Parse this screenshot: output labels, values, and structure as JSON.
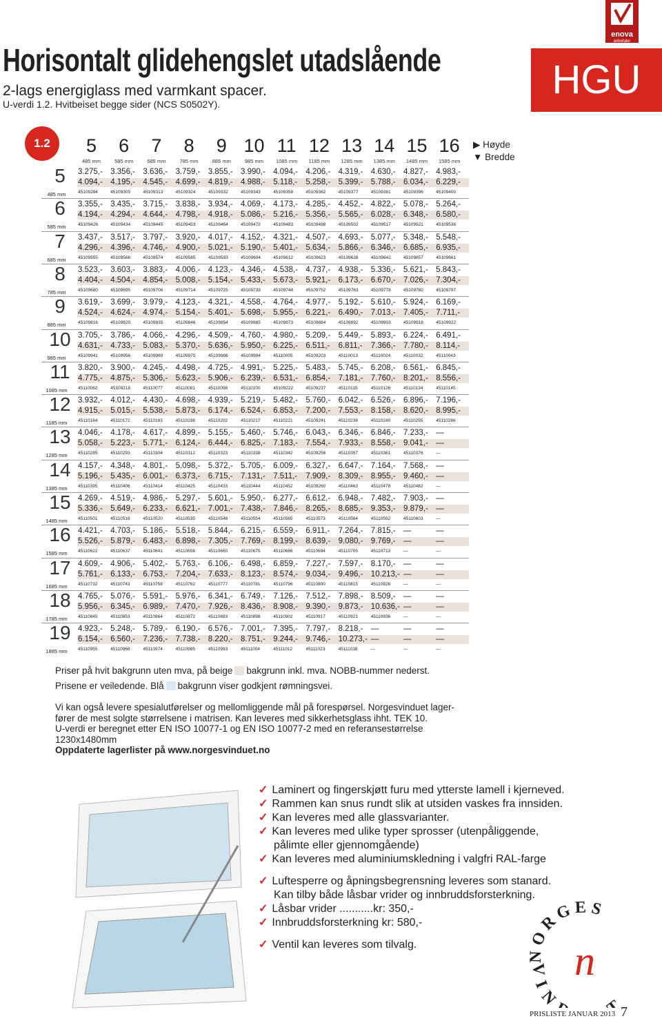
{
  "header": {
    "title": "Horisontalt glidehengslet utadslående",
    "subtitle": "2-lags energiglass med varmkant spacer.",
    "uvalue": "U-verdi 1.2. Hvitbeiset begge sider (NCS S0502Y).",
    "code": "HGU",
    "enova": "enova",
    "enova_sub": "anbefaler",
    "badge": "1.2"
  },
  "legend": {
    "height": "Høyde",
    "width": "Bredde"
  },
  "table": {
    "columns": [
      {
        "num": "5",
        "mm": "485 mm"
      },
      {
        "num": "6",
        "mm": "585 mm"
      },
      {
        "num": "7",
        "mm": "685 mm"
      },
      {
        "num": "8",
        "mm": "785 mm"
      },
      {
        "num": "9",
        "mm": "885 mm"
      },
      {
        "num": "10",
        "mm": "985 mm"
      },
      {
        "num": "11",
        "mm": "1085 mm"
      },
      {
        "num": "12",
        "mm": "1185 mm"
      },
      {
        "num": "13",
        "mm": "1285 mm"
      },
      {
        "num": "14",
        "mm": "1385 mm"
      },
      {
        "num": "15",
        "mm": "1485 mm"
      },
      {
        "num": "16",
        "mm": "1585 mm"
      }
    ],
    "rows": [
      {
        "num": "5",
        "mm": "485 mm",
        "p1": [
          "3.275,-",
          "3.356,-",
          "3.636,-",
          "3.759,-",
          "3.855,-",
          "3.990,-",
          "4.094,-",
          "4.206,-",
          "4.319,-",
          "4.630,-",
          "4.827,-",
          "4.983,-"
        ],
        "p2": [
          "4.094,-",
          "4.195,-",
          "4.545,-",
          "4.699,-",
          "4.819,-",
          "4.988,-",
          "5.118,-",
          "5.258,-",
          "5.399,-",
          "5.788,-",
          "6.034,-",
          "6.229,-"
        ],
        "nobb": [
          "45109294",
          "45109305",
          "45109313",
          "45109324",
          "45109332",
          "45109343",
          "45109358",
          "45109362",
          "45109377",
          "45109381",
          "45109396",
          "45109400"
        ]
      },
      {
        "num": "6",
        "mm": "585 mm",
        "p1": [
          "3.355,-",
          "3.435,-",
          "3.715,-",
          "3.838,-",
          "3.934,-",
          "4.069,-",
          "4.173,-",
          "4.285,-",
          "4.452,-",
          "4.822,-",
          "5.078,-",
          "5.264,-"
        ],
        "p2": [
          "4.194,-",
          "4.294,-",
          "4.644,-",
          "4.798,-",
          "4.918,-",
          "5.086,-",
          "5.216,-",
          "5.356,-",
          "5.565,-",
          "6.028,-",
          "6.348,-",
          "6.580,-"
        ],
        "nobb": [
          "45109426",
          "45109434",
          "45109445",
          "45109453",
          "45109464",
          "45109472",
          "45109483",
          "45109498",
          "45109502",
          "45109517",
          "45109521",
          "45109536"
        ]
      },
      {
        "num": "7",
        "mm": "685 mm",
        "p1": [
          "3.437,-",
          "3.517,-",
          "3.797,-",
          "3.920,-",
          "4.017,-",
          "4.152,-",
          "4.321,-",
          "4.507,-",
          "4.693,-",
          "5.077,-",
          "5.348,-",
          "5.548,-"
        ],
        "p2": [
          "4.296,-",
          "4.396,-",
          "4.746,-",
          "4.900,-",
          "5.021,-",
          "5.190,-",
          "5.401,-",
          "5.634,-",
          "5.866,-",
          "6.346,-",
          "6.685,-",
          "6.935,-"
        ],
        "nobb": [
          "45109555",
          "45109566",
          "45109574",
          "45109585",
          "45109593",
          "45109604",
          "45109612",
          "45109623",
          "45109638",
          "45109642",
          "45109657",
          "45109661"
        ]
      },
      {
        "num": "8",
        "mm": "785 mm",
        "p1": [
          "3.523,-",
          "3.603,-",
          "3.883,-",
          "4.006,-",
          "4.123,-",
          "4.346,-",
          "4.538,-",
          "4.737,-",
          "4.938,-",
          "5.336,-",
          "5.621,-",
          "5.843,-"
        ],
        "p2": [
          "4.404,-",
          "4.504,-",
          "4.854,-",
          "5.008,-",
          "5.154,-",
          "5.433,-",
          "5.673,-",
          "5.921,-",
          "6.173,-",
          "6.670,-",
          "7.026,-",
          "7.304,-"
        ],
        "nobb": [
          "45109680",
          "45109695",
          "45109706",
          "45109714",
          "45109725",
          "45109733",
          "45109744",
          "45109752",
          "45109763",
          "45109778",
          "45109782",
          "45109797"
        ]
      },
      {
        "num": "9",
        "mm": "885 mm",
        "p1": [
          "3.619,-",
          "3.699,-",
          "3.979,-",
          "4.123,-",
          "4.321,-",
          "4.558,-",
          "4.764,-",
          "4.977,-",
          "5.192,-",
          "5.610,-",
          "5.924,-",
          "6.169,-"
        ],
        "p2": [
          "4.524,-",
          "4.624,-",
          "4.974,-",
          "5.154,-",
          "5.401,-",
          "5.698,-",
          "5.955,-",
          "6.221,-",
          "6.490,-",
          "7.013,-",
          "7.405,-",
          "7.711,-"
        ],
        "nobb": [
          "45109816",
          "45109820",
          "45109835",
          "45109846",
          "45109854",
          "45109865",
          "45109873",
          "45109884",
          "45109892",
          "45109903",
          "45109918",
          "45109922"
        ]
      },
      {
        "num": "10",
        "mm": "985 mm",
        "p1": [
          "3.705,-",
          "3.786,-",
          "4.066,-",
          "4.296,-",
          "4.509,-",
          "4.760,-",
          "4.980,-",
          "5.209,-",
          "5.449,-",
          "5.893,-",
          "6.224,-",
          "6.491,-"
        ],
        "p2": [
          "4.631,-",
          "4.733,-",
          "5.083,-",
          "5.370,-",
          "5.636,-",
          "5.950,-",
          "6.225,-",
          "6.511,-",
          "6.811,-",
          "7.366,-",
          "7.780,-",
          "8.114,-"
        ],
        "nobb": [
          "45109941",
          "45109956",
          "45109960",
          "45109975",
          "45109986",
          "45109994",
          "45110005",
          "45109203",
          "45110013",
          "45110024",
          "45110032",
          "45110043"
        ]
      },
      {
        "num": "11",
        "mm": "1085 mm",
        "p1": [
          "3.820,-",
          "3.900,-",
          "4.245,-",
          "4.498,-",
          "4.725,-",
          "4.991,-",
          "5.225,-",
          "5.483,-",
          "5.745,-",
          "6.208,-",
          "6.561,-",
          "6.845,-"
        ],
        "p2": [
          "4.775,-",
          "4.875,-",
          "5.306,-",
          "5.623,-",
          "5.906,-",
          "6.239,-",
          "6.531,-",
          "6.854,-",
          "7.181,-",
          "7.760,-",
          "8.201,-",
          "8.556,-"
        ],
        "nobb": [
          "45110062",
          "45109218",
          "45110077",
          "45110081",
          "45110096",
          "45110100",
          "45109222",
          "45109237",
          "45110115",
          "45110126",
          "45110134",
          "45110145"
        ]
      },
      {
        "num": "12",
        "mm": "1185 mm",
        "p1": [
          "3.932,-",
          "4.012,-",
          "4.430,-",
          "4.698,-",
          "4.939,-",
          "5.219,-",
          "5.482,-",
          "5.760,-",
          "6.042,-",
          "6.526,-",
          "6.896,-",
          "7.196,-"
        ],
        "p2": [
          "4.915,-",
          "5.015,-",
          "5.538,-",
          "5.873,-",
          "6.174,-",
          "6.524,-",
          "6.853,-",
          "7.200,-",
          "7.553,-",
          "8.158,-",
          "8.620,-",
          "8.995,-"
        ],
        "nobb": [
          "45110164",
          "45110172",
          "45110183",
          "45110198",
          "45110202",
          "45110217",
          "45110221",
          "45109241",
          "45110236",
          "45110240",
          "45110255",
          "45110266"
        ]
      },
      {
        "num": "13",
        "mm": "1285 mm",
        "p1": [
          "4.046,-",
          "4.178,-",
          "4.617,-",
          "4.899,-",
          "5.155,-",
          "5.460,-",
          "5.746,-",
          "6.043,-",
          "6.346,-",
          "6.846,-",
          "7.233,-",
          "—"
        ],
        "p2": [
          "5.058,-",
          "5.223,-",
          "5.771,-",
          "6.124,-",
          "6.444,-",
          "6.825,-",
          "7.183,-",
          "7.554,-",
          "7.933,-",
          "8.558,-",
          "9.041,-",
          "—"
        ],
        "nobb": [
          "45110285",
          "45110293",
          "45110304",
          "45110312",
          "45110323",
          "45110338",
          "45110342",
          "45109256",
          "45110357",
          "45110361",
          "45110376",
          "—"
        ]
      },
      {
        "num": "14",
        "mm": "1385 mm",
        "p1": [
          "4.157,-",
          "4.348,-",
          "4.801,-",
          "5.098,-",
          "5.372,-",
          "5.705,-",
          "6.009,-",
          "6.327,-",
          "6.647,-",
          "7.164,-",
          "7.568,-",
          "—"
        ],
        "p2": [
          "5.196,-",
          "5.435,-",
          "6.001,-",
          "6.373,-",
          "6.715,-",
          "7.131,-",
          "7.511,-",
          "7.909,-",
          "8.309,-",
          "8.955,-",
          "9.460,-",
          "—"
        ],
        "nobb": [
          "45110395",
          "45110406",
          "45110414",
          "45110425",
          "45110433",
          "45110444",
          "45110452",
          "45109260",
          "45110463",
          "45110478",
          "45110482",
          "—"
        ]
      },
      {
        "num": "15",
        "mm": "1485 mm",
        "p1": [
          "4.269,-",
          "4.519,-",
          "4.986,-",
          "5.297,-",
          "5.601,-",
          "5.950,-",
          "6.277,-",
          "6.612,-",
          "6.948,-",
          "7.482,-",
          "7.903,-",
          "—"
        ],
        "p2": [
          "5.336,-",
          "5.649,-",
          "6.233,-",
          "6.621,-",
          "7.001,-",
          "7.438,-",
          "7.846,-",
          "8.265,-",
          "8.685,-",
          "9.353,-",
          "9.879,-",
          "—"
        ],
        "nobb": [
          "45110501",
          "45110516",
          "45110520",
          "45110535",
          "45110546",
          "45110554",
          "45110565",
          "45110573",
          "45110584",
          "45110592",
          "45110603",
          "—"
        ]
      },
      {
        "num": "16",
        "mm": "1585 mm",
        "p1": [
          "4.421,-",
          "4.703,-",
          "5.186,-",
          "5.518,-",
          "5.844,-",
          "6.215,-",
          "6.559,-",
          "6.911,-",
          "7.264,-",
          "7.815,-",
          "—",
          "—"
        ],
        "p2": [
          "5.526,-",
          "5.879,-",
          "6.483,-",
          "6.898,-",
          "7.305,-",
          "7.769,-",
          "8.199,-",
          "8.639,-",
          "9.080,-",
          "9.769,-",
          "—",
          "—"
        ],
        "nobb": [
          "45110622",
          "45110637",
          "45110641",
          "45110656",
          "45110660",
          "45110675",
          "45110686",
          "45110694",
          "45110705",
          "45110713",
          "—",
          "—"
        ]
      },
      {
        "num": "17",
        "mm": "1685 mm",
        "p1": [
          "4.609,-",
          "4.906,-",
          "5.402,-",
          "5.763,-",
          "6.106,-",
          "6.498,-",
          "6.859,-",
          "7.227,-",
          "7.597,-",
          "8.170,-",
          "—",
          "—"
        ],
        "p2": [
          "5.761,-",
          "6.133,-",
          "6.753,-",
          "7.204,-",
          "7.633,-",
          "8.123,-",
          "8.574,-",
          "9.034,-",
          "9.496,-",
          "10.213,-",
          "—",
          "—"
        ],
        "nobb": [
          "45110732",
          "45110743",
          "45110758",
          "45110762",
          "45110777",
          "45110781",
          "45110796",
          "45110800",
          "45110815",
          "45110826",
          "—",
          "—"
        ]
      },
      {
        "num": "18",
        "mm": "1785 mm",
        "p1": [
          "4.765,-",
          "5.076,-",
          "5.591,-",
          "5.976,-",
          "6.341,-",
          "6.749,-",
          "7.126,-",
          "7.512,-",
          "7.898,-",
          "8.509,-",
          "—",
          "—"
        ],
        "p2": [
          "5.956,-",
          "6.345,-",
          "6.989,-",
          "7.470,-",
          "7.926,-",
          "8.436,-",
          "8.908,-",
          "9.390,-",
          "9.873,-",
          "10.636,-",
          "—",
          "—"
        ],
        "nobb": [
          "45110845",
          "45110853",
          "45110864",
          "45110872",
          "45110883",
          "45110898",
          "45110902",
          "45110917",
          "45110921",
          "45110936",
          "—",
          "—"
        ]
      },
      {
        "num": "19",
        "mm": "1885 mm",
        "p1": [
          "4.923,-",
          "5.248,-",
          "5.789,-",
          "6.190,-",
          "6.576,-",
          "7.001,-",
          "7.395,-",
          "7.797,-",
          "8.218,-",
          "—",
          "—",
          "—"
        ],
        "p2": [
          "6.154,-",
          "6.560,-",
          "7.236,-",
          "7.738,-",
          "8.220,-",
          "8.751,-",
          "9.244,-",
          "9.746,-",
          "10.273,-",
          "—",
          "—",
          "—"
        ],
        "nobb": [
          "45110955",
          "45110966",
          "45110974",
          "45110985",
          "45110993",
          "45111004",
          "45111012",
          "45111023",
          "45111038",
          "—",
          "—",
          "—"
        ]
      }
    ]
  },
  "price_legend": {
    "line1a": "Priser på hvit bakgrunn uten mva, på beige",
    "line1b": "bakgrunn inkl. mva. NOBB-nummer nederst.",
    "line2a": "Prisene er veiledende. Blå",
    "line2b": "bakgrunn viser godkjent rømningsvei."
  },
  "notes": [
    "Vi kan også levere spesialutførelser og mellomliggende mål på forespørsel. Norgesvinduet lager-",
    "fører de mest solgte størrelsene i matrisen. Kan leveres med sikkerhetsglass ihht. TEK 10.",
    "U-verdi er beregnet etter EN ISO 10077-1 og EN ISO 10077-2 med en referansestørrelse",
    "1230x1480mm"
  ],
  "notes_bold": "Oppdaterte lagerlister på www.norgesvinduet.no",
  "bullets": [
    [
      [
        "Laminert og fingerskjøtt furu med ytterste lamell i kjerneved."
      ],
      [
        "Rammen kan snus rundt slik at utsiden vaskes fra innsiden."
      ],
      [
        "Kan leveres med alle glassvarianter."
      ],
      [
        "Kan leveres med ulike typer sprosser (utenpåliggende,",
        "pålimte eller gjennomgående)"
      ],
      [
        "Kan leveres med aluminiumskledning i valgfri RAL-farge"
      ]
    ],
    [
      [
        "Luftesperre og åpningsbegrensning leveres som stanard.",
        "Kan tilby både låsbar vrider og innbruddsforsterkning."
      ],
      [
        "Låsbar vrider ...........kr: 350,-"
      ],
      [
        "Innbruddsforsterkning kr: 580,-"
      ]
    ],
    [
      [
        "Ventil kan leveres som tilvalg."
      ]
    ]
  ],
  "logo": {
    "top": "NORGES",
    "bottom": "VINDUET"
  },
  "footer": {
    "text": "PRISLISTE JANUAR 2013",
    "page": "7"
  }
}
